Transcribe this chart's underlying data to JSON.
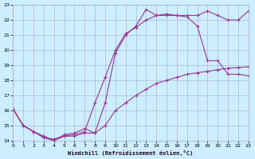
{
  "background_color": "#cceeff",
  "grid_color": "#aaaacc",
  "line_color": "#993399",
  "xlim": [
    0,
    23
  ],
  "ylim": [
    14,
    23
  ],
  "xlabel": "Windchill (Refroidissement éolien,°C)",
  "xticks": [
    0,
    1,
    2,
    3,
    4,
    5,
    6,
    7,
    8,
    9,
    10,
    11,
    12,
    13,
    14,
    15,
    16,
    17,
    18,
    19,
    20,
    21,
    22,
    23
  ],
  "yticks": [
    14,
    15,
    16,
    17,
    18,
    19,
    20,
    21,
    22,
    23
  ],
  "series1_x": [
    0,
    1,
    2,
    3,
    4,
    5,
    6,
    7,
    8,
    9,
    10,
    11,
    12,
    13,
    14,
    15,
    16,
    17,
    18,
    19,
    20,
    21,
    22,
    23
  ],
  "series1_y": [
    16.1,
    15.0,
    14.6,
    14.2,
    14.0,
    14.3,
    14.4,
    14.6,
    16.5,
    18.2,
    20.0,
    21.1,
    21.5,
    22.0,
    22.3,
    22.3,
    22.3,
    22.2,
    21.6,
    19.3,
    19.3,
    18.4,
    18.4,
    18.3
  ],
  "series2_x": [
    0,
    1,
    2,
    3,
    4,
    5,
    6,
    7,
    8,
    9,
    10,
    11,
    12,
    13,
    14,
    15,
    16,
    17,
    18,
    19,
    20,
    21,
    22,
    23
  ],
  "series2_y": [
    16.1,
    15.0,
    14.6,
    14.3,
    14.0,
    14.4,
    14.5,
    14.8,
    14.5,
    16.5,
    19.8,
    21.0,
    21.6,
    22.7,
    22.3,
    22.4,
    22.3,
    22.3,
    22.3,
    22.6,
    22.3,
    22.0,
    22.0,
    22.6
  ],
  "series3_x": [
    0,
    1,
    2,
    3,
    4,
    5,
    6,
    7,
    8,
    9,
    10,
    11,
    12,
    13,
    14,
    15,
    16,
    17,
    18,
    19,
    20,
    21,
    22,
    23
  ],
  "series3_y": [
    16.1,
    15.0,
    14.6,
    14.2,
    14.1,
    14.3,
    14.3,
    14.5,
    14.5,
    15.0,
    16.0,
    16.5,
    17.0,
    17.4,
    17.8,
    18.0,
    18.2,
    18.4,
    18.5,
    18.6,
    18.7,
    18.8,
    18.85,
    18.9
  ]
}
